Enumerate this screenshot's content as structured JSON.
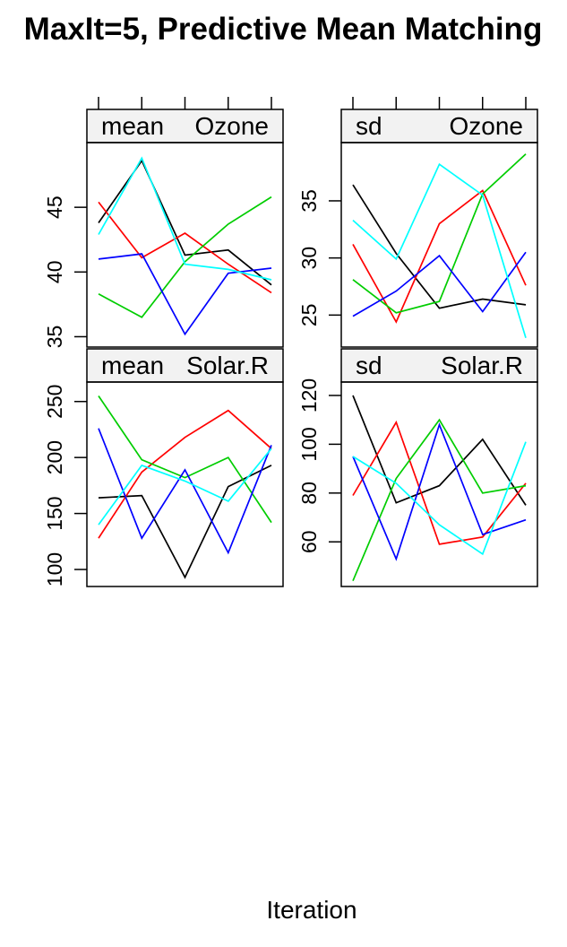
{
  "title": "MaxIt=5, Predictive Mean Matching",
  "xlabel": "Iteration",
  "colors": [
    "#000000",
    "#ff0000",
    "#00cd00",
    "#0000ff",
    "#00ffff"
  ],
  "chart_data": [
    {
      "type": "line",
      "strip_left": "mean",
      "strip_right": "Ozone",
      "x": [
        1,
        2,
        3,
        4,
        5
      ],
      "ylim": [
        34.2,
        50.0
      ],
      "yticks": [
        35,
        40,
        45
      ],
      "ytick_labels": [
        "35",
        "40",
        "45"
      ],
      "series": [
        {
          "color": "#000000",
          "values": [
            43.8,
            48.6,
            41.3,
            41.7,
            39.0
          ]
        },
        {
          "color": "#ff0000",
          "values": [
            45.4,
            41.1,
            43.0,
            40.6,
            38.4
          ]
        },
        {
          "color": "#00cd00",
          "values": [
            38.3,
            36.5,
            40.8,
            43.7,
            45.8
          ]
        },
        {
          "color": "#0000ff",
          "values": [
            41.0,
            41.4,
            35.2,
            39.9,
            40.3
          ]
        },
        {
          "color": "#00ffff",
          "values": [
            42.9,
            48.8,
            40.6,
            40.2,
            39.4
          ]
        }
      ]
    },
    {
      "type": "line",
      "strip_left": "sd",
      "strip_right": "Ozone",
      "x": [
        1,
        2,
        3,
        4,
        5
      ],
      "ylim": [
        22.2,
        40.1
      ],
      "yticks": [
        25,
        30,
        35
      ],
      "ytick_labels": [
        "25",
        "30",
        "35"
      ],
      "series": [
        {
          "color": "#000000",
          "values": [
            36.4,
            30.4,
            25.6,
            26.4,
            25.9
          ]
        },
        {
          "color": "#ff0000",
          "values": [
            31.2,
            24.4,
            33.0,
            35.9,
            27.6
          ]
        },
        {
          "color": "#00cd00",
          "values": [
            28.1,
            25.2,
            26.2,
            35.6,
            39.1
          ]
        },
        {
          "color": "#0000ff",
          "values": [
            24.9,
            27.1,
            30.2,
            25.3,
            30.5
          ]
        },
        {
          "color": "#00ffff",
          "values": [
            33.3,
            29.9,
            38.2,
            35.5,
            23.0
          ]
        }
      ]
    },
    {
      "type": "line",
      "strip_left": "mean",
      "strip_right": "Solar.R",
      "x": [
        1,
        2,
        3,
        4,
        5
      ],
      "ylim": [
        84.8,
        267.4
      ],
      "yticks": [
        100,
        150,
        200,
        250
      ],
      "ytick_labels": [
        "100",
        "150",
        "200",
        "250"
      ],
      "series": [
        {
          "color": "#000000",
          "values": [
            164,
            166,
            93,
            174,
            193
          ]
        },
        {
          "color": "#ff0000",
          "values": [
            128,
            187,
            218,
            242,
            208
          ]
        },
        {
          "color": "#00cd00",
          "values": [
            255,
            198,
            182,
            200,
            142
          ]
        },
        {
          "color": "#0000ff",
          "values": [
            226,
            128,
            189,
            115,
            211
          ]
        },
        {
          "color": "#00ffff",
          "values": [
            140,
            193,
            179,
            161,
            208
          ]
        }
      ]
    },
    {
      "type": "line",
      "strip_left": "sd",
      "strip_right": "Solar.R",
      "x": [
        1,
        2,
        3,
        4,
        5
      ],
      "ylim": [
        41.7,
        125.5
      ],
      "yticks": [
        60,
        80,
        100,
        120
      ],
      "ytick_labels": [
        "60",
        "80",
        "100",
        "120"
      ],
      "series": [
        {
          "color": "#000000",
          "values": [
            120,
            76,
            83,
            102,
            75
          ]
        },
        {
          "color": "#ff0000",
          "values": [
            79,
            109,
            59,
            62,
            84
          ]
        },
        {
          "color": "#00cd00",
          "values": [
            44,
            86,
            110,
            80,
            83
          ]
        },
        {
          "color": "#0000ff",
          "values": [
            95,
            53,
            108,
            63,
            69
          ]
        },
        {
          "color": "#00ffff",
          "values": [
            95,
            84,
            67,
            55,
            101
          ]
        }
      ]
    }
  ]
}
